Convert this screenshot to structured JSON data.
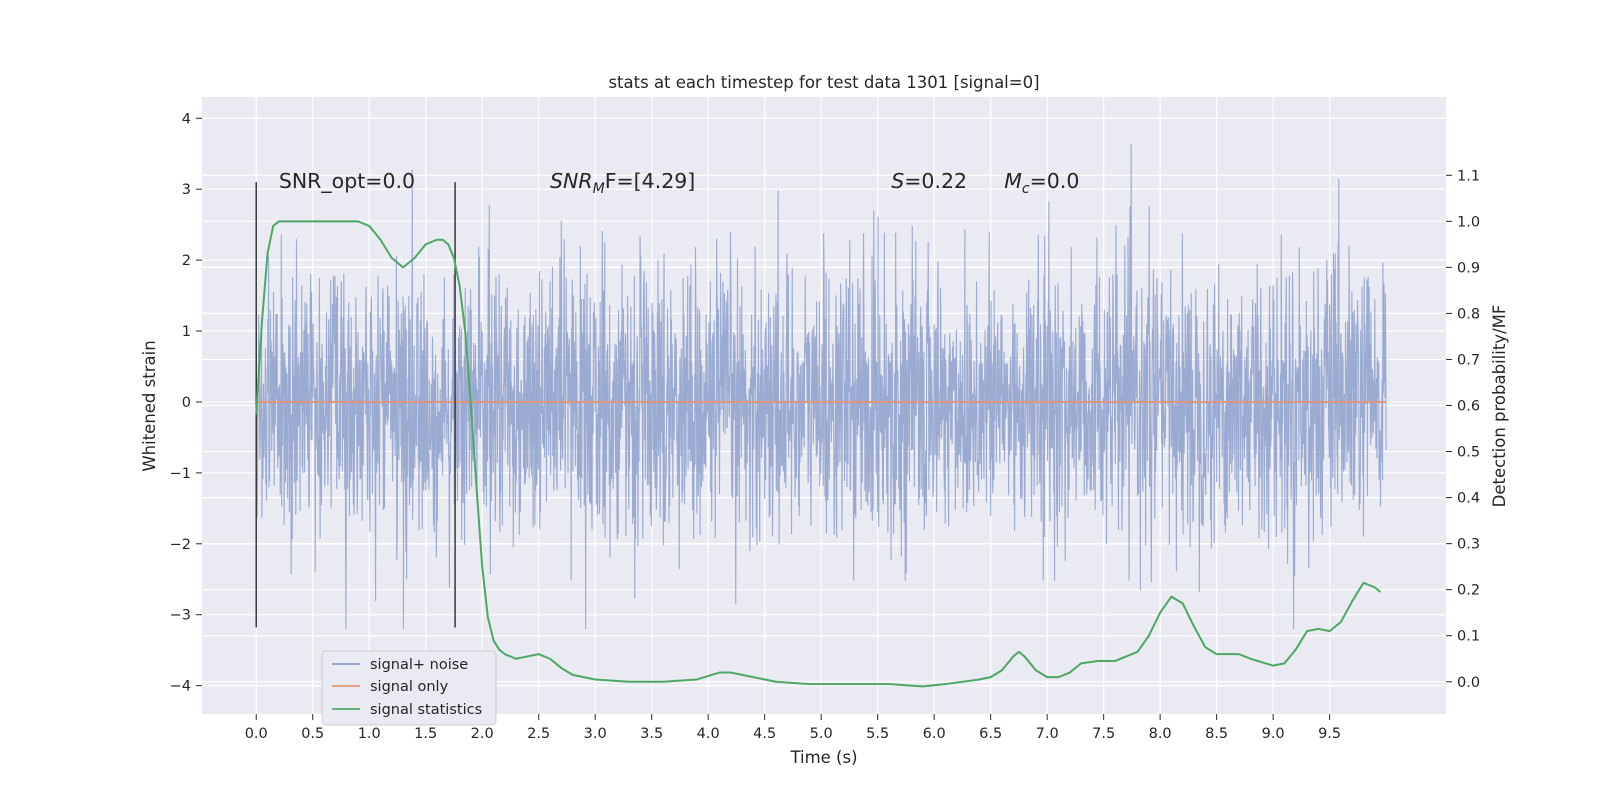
{
  "chart_data": {
    "type": "line",
    "title": "stats at each timestep for test data 1301 [signal=0]",
    "xlabel": "Time (s)",
    "ylabel": "Whitened strain",
    "y2label": "Detection probability/MF",
    "xlim": [
      -0.48,
      10.53
    ],
    "ylim": [
      -4.4,
      4.3
    ],
    "y2lim": [
      -0.07,
      1.27
    ],
    "x_ticks": [
      0.0,
      0.5,
      1.0,
      1.5,
      2.0,
      2.5,
      3.0,
      3.5,
      4.0,
      4.5,
      5.0,
      5.5,
      6.0,
      6.5,
      7.0,
      7.5,
      8.0,
      8.5,
      9.0,
      9.5
    ],
    "x_tick_labels": [
      "0.0",
      "0.5",
      "1.0",
      "1.5",
      "2.0",
      "2.5",
      "3.0",
      "3.5",
      "4.0",
      "4.5",
      "5.0",
      "5.5",
      "6.0",
      "6.5",
      "7.0",
      "7.5",
      "8.0",
      "8.5",
      "9.0",
      "9.5"
    ],
    "y_ticks": [
      -4,
      -3,
      -2,
      -1,
      0,
      1,
      2,
      3,
      4
    ],
    "y_tick_labels": [
      "−4",
      "−3",
      "−2",
      "−1",
      "0",
      "1",
      "2",
      "3",
      "4"
    ],
    "y2_ticks": [
      0.0,
      0.1,
      0.2,
      0.3,
      0.4,
      0.5,
      0.6,
      0.7,
      0.8,
      0.9,
      1.0,
      1.1
    ],
    "y2_tick_labels": [
      "0.0",
      "0.1",
      "0.2",
      "0.3",
      "0.4",
      "0.5",
      "0.6",
      "0.7",
      "0.8",
      "0.9",
      "1.0",
      "1.1"
    ],
    "grid": true,
    "legend_position": "lower-left",
    "series": [
      {
        "name": "signal+ noise",
        "color": "#8c9fcb",
        "axis": "left",
        "x_range": [
          0.0,
          10.0
        ],
        "amplitude_envelope_approx": [
          -3.2,
          3.9
        ]
      },
      {
        "name": "signal only",
        "color": "#e0957a",
        "axis": "left",
        "x": [
          0.0,
          10.0
        ],
        "y": [
          0.0,
          0.0
        ]
      },
      {
        "name": "signal statistics",
        "color": "#4ea764",
        "axis": "right",
        "x": [
          0.0,
          0.05,
          0.1,
          0.15,
          0.2,
          0.3,
          0.5,
          0.7,
          0.9,
          1.0,
          1.1,
          1.2,
          1.3,
          1.4,
          1.5,
          1.6,
          1.65,
          1.7,
          1.75,
          1.8,
          1.85,
          1.9,
          1.95,
          2.0,
          2.05,
          2.1,
          2.15,
          2.2,
          2.3,
          2.4,
          2.5,
          2.6,
          2.7,
          2.8,
          3.0,
          3.3,
          3.6,
          3.9,
          4.1,
          4.2,
          4.3,
          4.6,
          4.9,
          5.2,
          5.4,
          5.6,
          5.9,
          6.1,
          6.4,
          6.5,
          6.6,
          6.7,
          6.75,
          6.8,
          6.9,
          7.0,
          7.1,
          7.2,
          7.3,
          7.45,
          7.6,
          7.8,
          7.9,
          8.0,
          8.1,
          8.2,
          8.3,
          8.4,
          8.5,
          8.7,
          8.8,
          9.0,
          9.1,
          9.2,
          9.3,
          9.4,
          9.5,
          9.6,
          9.7,
          9.8,
          9.9,
          9.95
        ],
        "y": [
          0.58,
          0.78,
          0.93,
          0.99,
          1.0,
          1.0,
          1.0,
          1.0,
          1.0,
          0.99,
          0.96,
          0.92,
          0.9,
          0.92,
          0.95,
          0.96,
          0.96,
          0.95,
          0.92,
          0.86,
          0.76,
          0.6,
          0.42,
          0.25,
          0.14,
          0.09,
          0.07,
          0.06,
          0.05,
          0.055,
          0.06,
          0.05,
          0.03,
          0.015,
          0.005,
          0.0,
          0.0,
          0.005,
          0.02,
          0.02,
          0.015,
          0.0,
          -0.005,
          -0.005,
          -0.005,
          -0.005,
          -0.01,
          -0.005,
          0.005,
          0.01,
          0.025,
          0.055,
          0.065,
          0.055,
          0.025,
          0.01,
          0.01,
          0.02,
          0.04,
          0.045,
          0.045,
          0.065,
          0.1,
          0.15,
          0.185,
          0.17,
          0.12,
          0.075,
          0.06,
          0.06,
          0.05,
          0.035,
          0.04,
          0.07,
          0.11,
          0.115,
          0.11,
          0.13,
          0.175,
          0.215,
          0.205,
          0.195
        ]
      }
    ],
    "vertical_markers": [
      {
        "x": 0.0,
        "ymin": -3.18,
        "ymax": 3.1,
        "color": "#3b3b3b"
      },
      {
        "x": 1.76,
        "ymin": -3.18,
        "ymax": 3.1,
        "color": "#3b3b3b"
      }
    ],
    "annotations": [
      {
        "kind": "plain",
        "text": "SNR_opt=0.0",
        "x": 0.2,
        "y": 3.1
      },
      {
        "kind": "snrmf",
        "main": "SNR",
        "sub": "M",
        "rest": "F=[4.29]",
        "x": 2.6,
        "y": 3.1
      },
      {
        "kind": "italic",
        "main": "S",
        "rest": "=0.22",
        "x": 5.62,
        "y": 3.1
      },
      {
        "kind": "sub",
        "main": "M",
        "sub": "c",
        "rest": "=0.0",
        "x": 6.62,
        "y": 3.1
      }
    ],
    "legend_labels": [
      "signal+ noise",
      "signal only",
      "signal statistics"
    ]
  }
}
